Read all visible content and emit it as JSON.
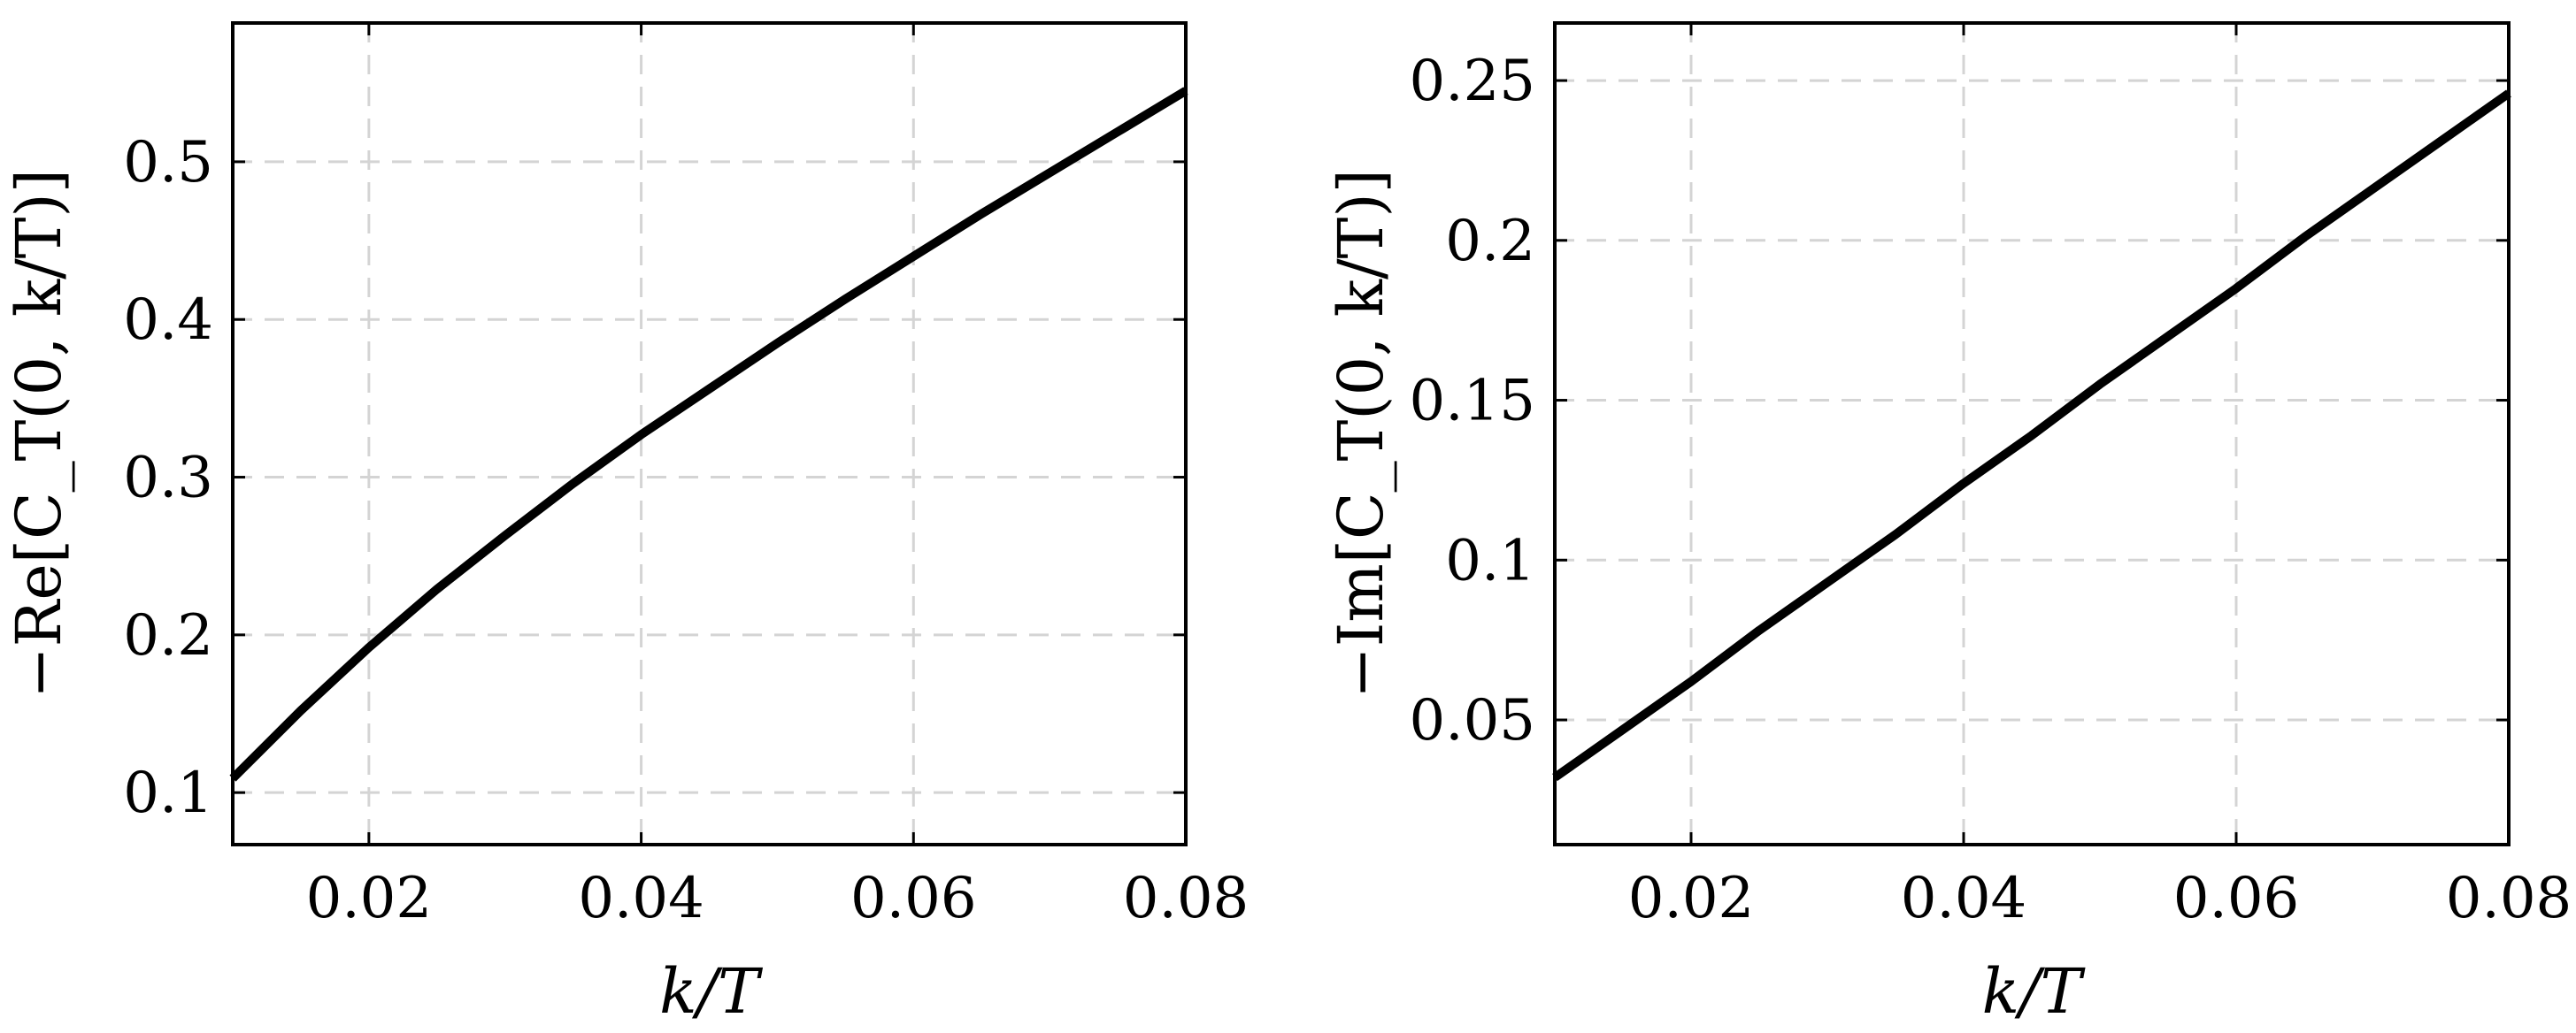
{
  "chart_data": [
    {
      "type": "line",
      "title": "",
      "xlabel": "k/T",
      "ylabel": "−Re[C_T(0, k/T)]",
      "xlim": [
        0.01,
        0.08
      ],
      "ylim": [
        0.067,
        0.588
      ],
      "xticks": [
        0.02,
        0.04,
        0.06,
        0.08
      ],
      "xtick_labels": [
        "0.02",
        "0.04",
        "0.06",
        "0.08"
      ],
      "yticks": [
        0.1,
        0.2,
        0.3,
        0.4,
        0.5
      ],
      "ytick_labels": [
        "0.1",
        "0.2",
        "0.3",
        "0.4",
        "0.5"
      ],
      "grid": true,
      "legend": "none",
      "series": [
        {
          "color": "#000000",
          "x": [
            0.01,
            0.015,
            0.02,
            0.025,
            0.03,
            0.035,
            0.04,
            0.045,
            0.05,
            0.055,
            0.06,
            0.065,
            0.07,
            0.075,
            0.08
          ],
          "y": [
            0.109,
            0.152,
            0.192,
            0.229,
            0.263,
            0.296,
            0.327,
            0.356,
            0.385,
            0.413,
            0.44,
            0.467,
            0.493,
            0.519,
            0.545
          ]
        }
      ]
    },
    {
      "type": "line",
      "title": "",
      "xlabel": "k/T",
      "ylabel": "−Im[C_T(0, k/T)]",
      "xlim": [
        0.01,
        0.08
      ],
      "ylim": [
        0.011,
        0.268
      ],
      "xticks": [
        0.02,
        0.04,
        0.06,
        0.08
      ],
      "xtick_labels": [
        "0.02",
        "0.04",
        "0.06",
        "0.08"
      ],
      "yticks": [
        0.05,
        0.1,
        0.15,
        0.2,
        0.25
      ],
      "ytick_labels": [
        "0.05",
        "0.1",
        "0.15",
        "0.2",
        "0.25"
      ],
      "grid": true,
      "legend": "none",
      "series": [
        {
          "color": "#000000",
          "x": [
            0.01,
            0.015,
            0.02,
            0.025,
            0.03,
            0.035,
            0.04,
            0.045,
            0.05,
            0.055,
            0.06,
            0.065,
            0.07,
            0.075,
            0.08
          ],
          "y": [
            0.032,
            0.047,
            0.062,
            0.078,
            0.093,
            0.108,
            0.124,
            0.139,
            0.155,
            0.17,
            0.185,
            0.201,
            0.216,
            0.231,
            0.246
          ]
        }
      ]
    }
  ]
}
